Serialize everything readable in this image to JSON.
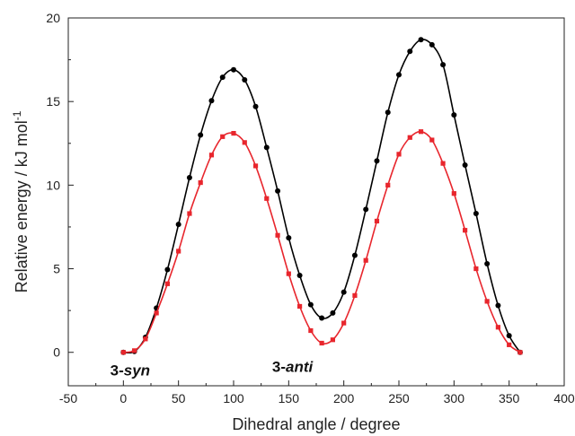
{
  "chart_data": {
    "type": "line",
    "xlabel": "Dihedral angle / degree",
    "ylabel": "Relative energy / kJ mol",
    "ylabel_sup": "-1",
    "xlim": [
      -50,
      400
    ],
    "ylim": [
      -2,
      20
    ],
    "xticks": [
      -50,
      0,
      50,
      100,
      150,
      200,
      250,
      300,
      350,
      400
    ],
    "yticks": [
      0,
      5,
      10,
      15,
      20
    ],
    "grid": false,
    "legend": "none",
    "annotations": [
      {
        "prefix": "3-",
        "italic": "syn",
        "x": -12,
        "y": -1.05
      },
      {
        "prefix": "3-",
        "italic": "anti",
        "x": 135,
        "y": -0.85
      }
    ],
    "series": [
      {
        "color": "#000000",
        "marker": "circle",
        "x": [
          0,
          10,
          20,
          30,
          40,
          50,
          60,
          70,
          80,
          90,
          100,
          110,
          120,
          130,
          140,
          150,
          160,
          170,
          180,
          190,
          200,
          210,
          220,
          230,
          240,
          250,
          260,
          270,
          280,
          290,
          300,
          310,
          320,
          330,
          340,
          350,
          360
        ],
        "y": [
          0.0,
          0.05,
          0.9,
          2.65,
          4.95,
          7.65,
          10.45,
          13.0,
          15.05,
          16.45,
          16.9,
          16.3,
          14.7,
          12.25,
          9.65,
          6.85,
          4.6,
          2.85,
          2.05,
          2.35,
          3.6,
          5.8,
          8.55,
          11.45,
          14.35,
          16.6,
          18.0,
          18.7,
          18.4,
          17.2,
          14.2,
          11.2,
          8.3,
          5.3,
          2.8,
          1.0,
          0.0
        ]
      },
      {
        "color": "#e8262d",
        "marker": "square",
        "x": [
          0,
          10,
          20,
          30,
          40,
          50,
          60,
          70,
          80,
          90,
          100,
          110,
          120,
          130,
          140,
          150,
          160,
          170,
          180,
          190,
          200,
          210,
          220,
          230,
          240,
          250,
          260,
          270,
          280,
          290,
          300,
          310,
          320,
          330,
          340,
          350,
          360
        ],
        "y": [
          0.0,
          0.1,
          0.8,
          2.35,
          4.1,
          6.05,
          8.3,
          10.15,
          11.8,
          12.9,
          13.1,
          12.55,
          11.15,
          9.2,
          7.0,
          4.7,
          2.75,
          1.3,
          0.55,
          0.75,
          1.75,
          3.4,
          5.5,
          7.85,
          10.0,
          11.85,
          12.85,
          13.2,
          12.7,
          11.3,
          9.5,
          7.3,
          5.0,
          3.05,
          1.5,
          0.45,
          0.0
        ]
      }
    ]
  }
}
